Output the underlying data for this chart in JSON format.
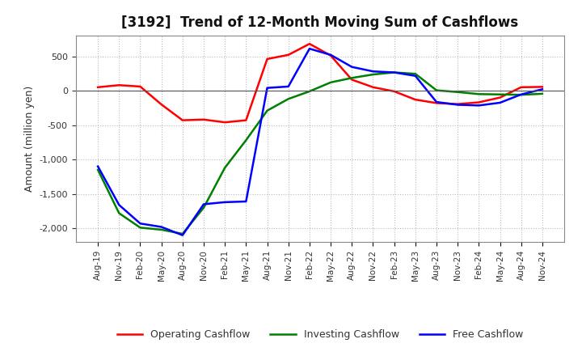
{
  "title": "[3192]  Trend of 12-Month Moving Sum of Cashflows",
  "ylabel": "Amount (million yen)",
  "x_labels": [
    "Aug-19",
    "Nov-19",
    "Feb-20",
    "May-20",
    "Aug-20",
    "Nov-20",
    "Feb-21",
    "May-21",
    "Aug-21",
    "Nov-21",
    "Feb-22",
    "May-22",
    "Aug-22",
    "Nov-22",
    "Feb-23",
    "May-23",
    "Aug-23",
    "Nov-23",
    "Feb-24",
    "May-24",
    "Aug-24",
    "Nov-24"
  ],
  "operating": [
    50,
    80,
    60,
    -200,
    -430,
    -420,
    -460,
    -430,
    460,
    520,
    680,
    510,
    160,
    50,
    -10,
    -130,
    -180,
    -195,
    -170,
    -100,
    50,
    55
  ],
  "investing": [
    -1150,
    -1780,
    -1990,
    -2020,
    -2080,
    -1700,
    -1120,
    -720,
    -290,
    -120,
    -10,
    120,
    185,
    235,
    265,
    245,
    5,
    -20,
    -50,
    -55,
    -60,
    -45
  ],
  "free": [
    -1100,
    -1660,
    -1930,
    -1980,
    -2100,
    -1650,
    -1620,
    -1610,
    40,
    60,
    610,
    520,
    345,
    280,
    265,
    215,
    -165,
    -205,
    -215,
    -175,
    -55,
    20
  ],
  "operating_color": "#ff0000",
  "investing_color": "#008000",
  "free_color": "#0000ff",
  "ylim": [
    -2200,
    800
  ],
  "yticks": [
    -2000,
    -1500,
    -1000,
    -500,
    0,
    500
  ],
  "background_color": "#ffffff",
  "grid_color": "#bbbbbb"
}
